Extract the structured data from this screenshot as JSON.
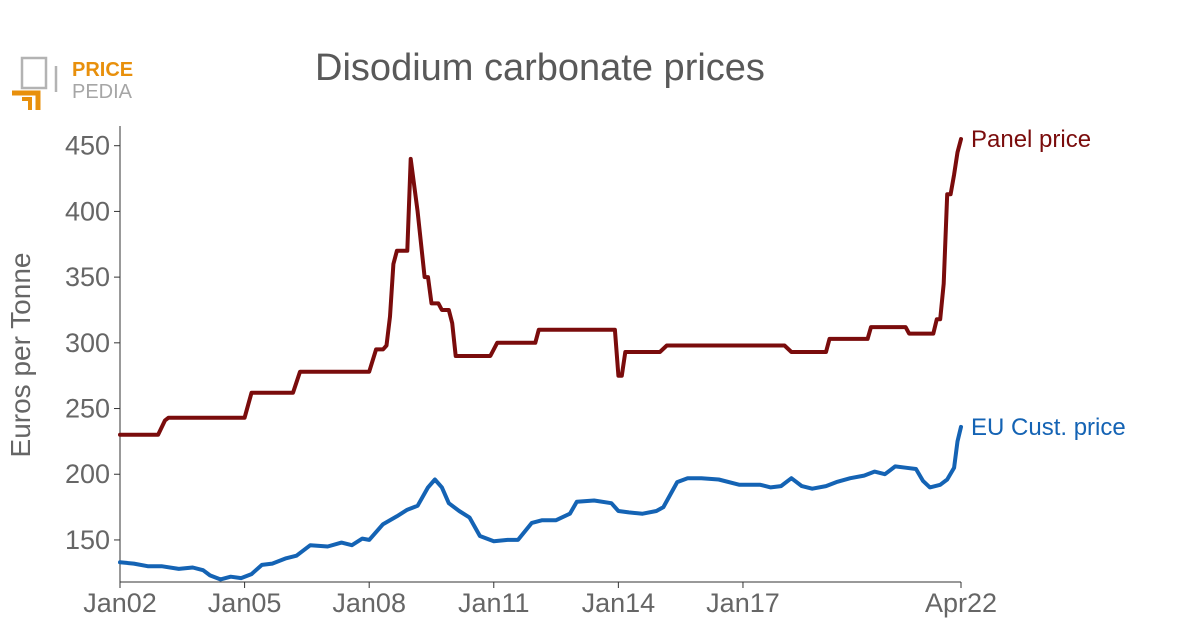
{
  "logo": {
    "line1": "PRICE",
    "line2": "PEDIA",
    "accent_color": "#e8900c",
    "gray_color": "#a6a6a6"
  },
  "chart_data": {
    "type": "line",
    "title": "Disodium carbonate prices",
    "xlabel": "",
    "ylabel": "Euros per Tonne",
    "x_tick_labels": [
      "Jan02",
      "Jan05",
      "Jan08",
      "Jan11",
      "Jan14",
      "Jan17",
      "Apr22"
    ],
    "x_ticks": [
      "2002-01",
      "2005-01",
      "2008-01",
      "2011-01",
      "2014-01",
      "2017-01",
      "2022-04"
    ],
    "xlim": [
      "2002-01",
      "2022-04"
    ],
    "yticks": [
      150,
      200,
      250,
      300,
      350,
      400,
      450
    ],
    "ylim": [
      118,
      465
    ],
    "grid": false,
    "legend": "inline labels at line ends",
    "series": [
      {
        "name": "Panel price",
        "color": "#7a0c0c",
        "points": [
          [
            "2002-01",
            230
          ],
          [
            "2002-12",
            230
          ],
          [
            "2003-02",
            241
          ],
          [
            "2003-03",
            243
          ],
          [
            "2003-12",
            243
          ],
          [
            "2004-12",
            243
          ],
          [
            "2005-01",
            243
          ],
          [
            "2005-03",
            262
          ],
          [
            "2006-03",
            262
          ],
          [
            "2006-05",
            278
          ],
          [
            "2007-12",
            278
          ],
          [
            "2008-01",
            278
          ],
          [
            "2008-03",
            295
          ],
          [
            "2008-05",
            295
          ],
          [
            "2008-06",
            298
          ],
          [
            "2008-07",
            320
          ],
          [
            "2008-08",
            360
          ],
          [
            "2008-09",
            370
          ],
          [
            "2008-12",
            370
          ],
          [
            "2009-01",
            440
          ],
          [
            "2009-03",
            400
          ],
          [
            "2009-05",
            350
          ],
          [
            "2009-06",
            350
          ],
          [
            "2009-07",
            330
          ],
          [
            "2009-09",
            330
          ],
          [
            "2009-10",
            325
          ],
          [
            "2009-12",
            325
          ],
          [
            "2010-01",
            315
          ],
          [
            "2010-02",
            290
          ],
          [
            "2010-12",
            290
          ],
          [
            "2011-02",
            300
          ],
          [
            "2012-01",
            300
          ],
          [
            "2012-02",
            310
          ],
          [
            "2013-12",
            310
          ],
          [
            "2014-01",
            275
          ],
          [
            "2014-02",
            275
          ],
          [
            "2014-03",
            293
          ],
          [
            "2015-01",
            293
          ],
          [
            "2015-03",
            298
          ],
          [
            "2016-12",
            298
          ],
          [
            "2017-12",
            298
          ],
          [
            "2018-01",
            298
          ],
          [
            "2018-03",
            293
          ],
          [
            "2019-01",
            293
          ],
          [
            "2019-02",
            303
          ],
          [
            "2020-01",
            303
          ],
          [
            "2020-02",
            312
          ],
          [
            "2020-12",
            312
          ],
          [
            "2021-01",
            307
          ],
          [
            "2021-08",
            307
          ],
          [
            "2021-09",
            318
          ],
          [
            "2021-10",
            318
          ],
          [
            "2021-11",
            345
          ],
          [
            "2021-12",
            413
          ],
          [
            "2022-01",
            413
          ],
          [
            "2022-02",
            428
          ],
          [
            "2022-03",
            445
          ],
          [
            "2022-04",
            455
          ]
        ]
      },
      {
        "name": "EU Cust. price",
        "color": "#1463b4",
        "points": [
          [
            "2002-01",
            133
          ],
          [
            "2002-05",
            132
          ],
          [
            "2002-09",
            130
          ],
          [
            "2003-01",
            130
          ],
          [
            "2003-06",
            128
          ],
          [
            "2003-10",
            129
          ],
          [
            "2004-01",
            127
          ],
          [
            "2004-03",
            123
          ],
          [
            "2004-06",
            120
          ],
          [
            "2004-09",
            122
          ],
          [
            "2004-12",
            121
          ],
          [
            "2005-03",
            124
          ],
          [
            "2005-06",
            131
          ],
          [
            "2005-09",
            132
          ],
          [
            "2006-01",
            136
          ],
          [
            "2006-04",
            138
          ],
          [
            "2006-08",
            146
          ],
          [
            "2007-01",
            145
          ],
          [
            "2007-05",
            148
          ],
          [
            "2007-08",
            146
          ],
          [
            "2007-11",
            151
          ],
          [
            "2008-01",
            150
          ],
          [
            "2008-05",
            162
          ],
          [
            "2008-09",
            168
          ],
          [
            "2008-12",
            173
          ],
          [
            "2009-03",
            176
          ],
          [
            "2009-06",
            190
          ],
          [
            "2009-08",
            196
          ],
          [
            "2009-10",
            190
          ],
          [
            "2009-12",
            178
          ],
          [
            "2010-03",
            172
          ],
          [
            "2010-06",
            167
          ],
          [
            "2010-09",
            153
          ],
          [
            "2011-01",
            149
          ],
          [
            "2011-05",
            150
          ],
          [
            "2011-08",
            150
          ],
          [
            "2011-12",
            163
          ],
          [
            "2012-03",
            165
          ],
          [
            "2012-07",
            165
          ],
          [
            "2012-11",
            170
          ],
          [
            "2013-01",
            179
          ],
          [
            "2013-06",
            180
          ],
          [
            "2013-11",
            178
          ],
          [
            "2014-01",
            172
          ],
          [
            "2014-04",
            171
          ],
          [
            "2014-08",
            170
          ],
          [
            "2014-12",
            172
          ],
          [
            "2015-02",
            175
          ],
          [
            "2015-06",
            194
          ],
          [
            "2015-09",
            197
          ],
          [
            "2016-01",
            197
          ],
          [
            "2016-06",
            196
          ],
          [
            "2016-12",
            192
          ],
          [
            "2017-06",
            192
          ],
          [
            "2017-09",
            190
          ],
          [
            "2017-12",
            191
          ],
          [
            "2018-03",
            197
          ],
          [
            "2018-06",
            191
          ],
          [
            "2018-09",
            189
          ],
          [
            "2019-01",
            191
          ],
          [
            "2019-04",
            194
          ],
          [
            "2019-08",
            197
          ],
          [
            "2019-12",
            199
          ],
          [
            "2020-03",
            202
          ],
          [
            "2020-06",
            200
          ],
          [
            "2020-09",
            206
          ],
          [
            "2020-12",
            205
          ],
          [
            "2021-03",
            204
          ],
          [
            "2021-05",
            195
          ],
          [
            "2021-07",
            190
          ],
          [
            "2021-10",
            192
          ],
          [
            "2021-12",
            196
          ],
          [
            "2022-02",
            205
          ],
          [
            "2022-03",
            225
          ],
          [
            "2022-04",
            236
          ]
        ]
      }
    ]
  }
}
